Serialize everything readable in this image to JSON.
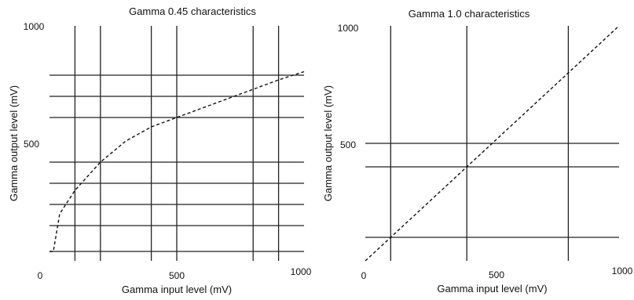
{
  "chart_data": [
    {
      "type": "line",
      "title": "Gamma 0.45 characteristics",
      "xlabel": "Gamma input level (mV)",
      "ylabel": "Gamma output level (mV)",
      "xlim": [
        0,
        1000
      ],
      "ylim": [
        0,
        1000
      ],
      "x_ticks": [
        "0",
        "500",
        "1000"
      ],
      "y_ticks": [
        "1000",
        "500"
      ],
      "grid_x": [
        100,
        200,
        400,
        500,
        800,
        900
      ],
      "grid_y": [
        40,
        150,
        240,
        330,
        420,
        610,
        700,
        790
      ],
      "series": [
        {
          "style": "dashed",
          "x": [
            0,
            15,
            40,
            100,
            200,
            300,
            400,
            500,
            600,
            700,
            800,
            900,
            1000
          ],
          "y": [
            40,
            40,
            200,
            300,
            420,
            510,
            570,
            610,
            650,
            690,
            730,
            770,
            805
          ]
        }
      ]
    },
    {
      "type": "line",
      "title": "Gamma 1.0 characteristics",
      "xlabel": "Gamma input level (mV)",
      "ylabel": "Gamma output level (mV)",
      "xlim": [
        0,
        1000
      ],
      "ylim": [
        0,
        1000
      ],
      "x_ticks": [
        "0",
        "500",
        "1000"
      ],
      "y_ticks": [
        "1000",
        "500"
      ],
      "grid_x": [
        100,
        400,
        800
      ],
      "grid_y": [
        100,
        400,
        500
      ],
      "series": [
        {
          "style": "dashed",
          "x": [
            0,
            1000
          ],
          "y": [
            0,
            1000
          ]
        }
      ]
    }
  ]
}
